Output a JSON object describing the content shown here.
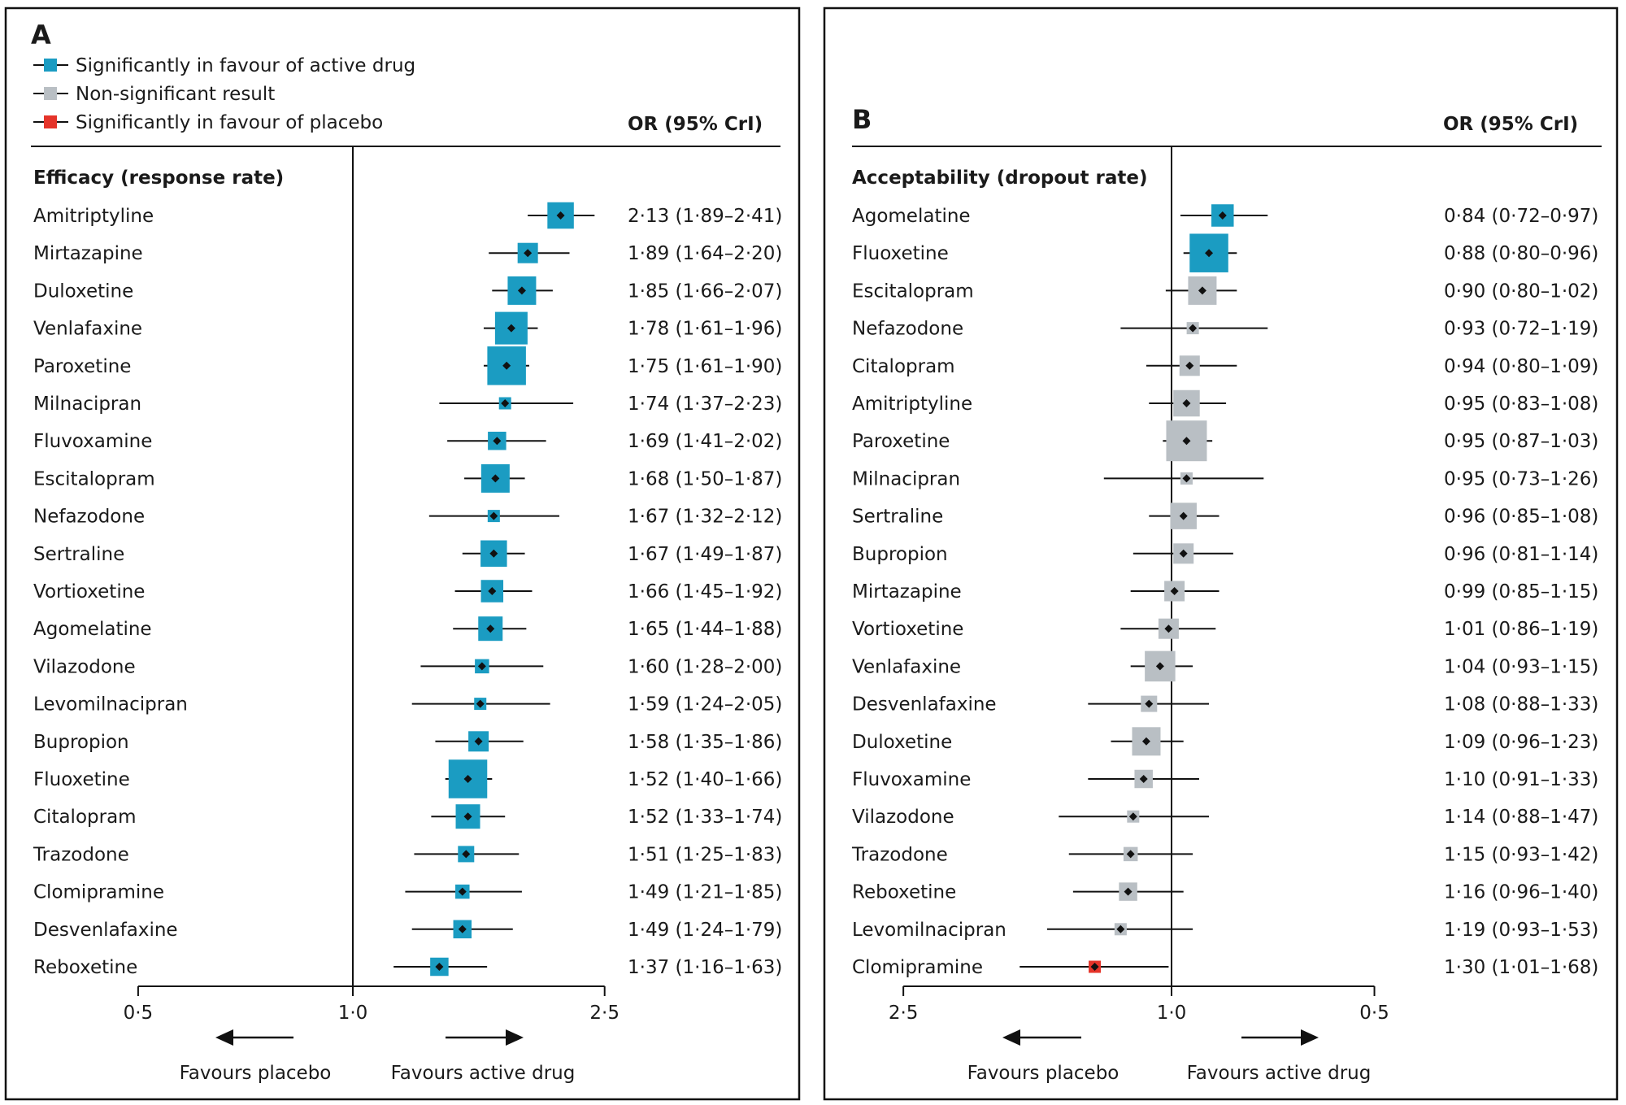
{
  "colors": {
    "sig_active": "#1b9cc2",
    "nonsig": "#b9bfc4",
    "sig_placebo": "#e5342a"
  },
  "chart_data": [
    {
      "type": "forest",
      "panel_label": "A",
      "legend": [
        {
          "label": "Significantly in favour of active drug",
          "status": "sig_active"
        },
        {
          "label": "Non-significant result",
          "status": "nonsig"
        },
        {
          "label": "Significantly in favour of placebo",
          "status": "sig_placebo"
        }
      ],
      "column_header": "OR (95% CrI)",
      "section_title": "Efficacy (response rate)",
      "x_scale": "log",
      "x_ticks": [
        "0·5",
        "1·0",
        "2·5"
      ],
      "x_tick_values": [
        0.5,
        1.0,
        2.5
      ],
      "reversed": false,
      "arrow_left_label": "Favours placebo",
      "arrow_right_label": "Favours active drug",
      "rows": [
        {
          "name": "Amitriptyline",
          "or": 2.13,
          "lo": 1.89,
          "hi": 2.41,
          "label": "2·13 (1·89–2·41)",
          "status": "sig_active",
          "weight": 0.65
        },
        {
          "name": "Mirtazapine",
          "or": 1.89,
          "lo": 1.64,
          "hi": 2.2,
          "label": "1·89 (1·64–2·20)",
          "status": "sig_active",
          "weight": 0.5
        },
        {
          "name": "Duloxetine",
          "or": 1.85,
          "lo": 1.66,
          "hi": 2.07,
          "label": "1·85 (1·66–2·07)",
          "status": "sig_active",
          "weight": 0.7
        },
        {
          "name": "Venlafaxine",
          "or": 1.78,
          "lo": 1.61,
          "hi": 1.96,
          "label": "1·78 (1·61–1·96)",
          "status": "sig_active",
          "weight": 0.8
        },
        {
          "name": "Paroxetine",
          "or": 1.75,
          "lo": 1.61,
          "hi": 1.9,
          "label": "1·75 (1·61–1·90)",
          "status": "sig_active",
          "weight": 0.95
        },
        {
          "name": "Milnacipran",
          "or": 1.74,
          "lo": 1.37,
          "hi": 2.23,
          "label": "1·74 (1·37–2·23)",
          "status": "sig_active",
          "weight": 0.3
        },
        {
          "name": "Fluvoxamine",
          "or": 1.69,
          "lo": 1.41,
          "hi": 2.02,
          "label": "1·69 (1·41–2·02)",
          "status": "sig_active",
          "weight": 0.45
        },
        {
          "name": "Escitalopram",
          "or": 1.68,
          "lo": 1.5,
          "hi": 1.87,
          "label": "1·68 (1·50–1·87)",
          "status": "sig_active",
          "weight": 0.7
        },
        {
          "name": "Nefazodone",
          "or": 1.67,
          "lo": 1.32,
          "hi": 2.12,
          "label": "1·67 (1·32–2·12)",
          "status": "sig_active",
          "weight": 0.3
        },
        {
          "name": "Sertraline",
          "or": 1.67,
          "lo": 1.49,
          "hi": 1.87,
          "label": "1·67 (1·49–1·87)",
          "status": "sig_active",
          "weight": 0.65
        },
        {
          "name": "Vortioxetine",
          "or": 1.66,
          "lo": 1.45,
          "hi": 1.92,
          "label": "1·66 (1·45–1·92)",
          "status": "sig_active",
          "weight": 0.55
        },
        {
          "name": "Agomelatine",
          "or": 1.65,
          "lo": 1.44,
          "hi": 1.88,
          "label": "1·65 (1·44–1·88)",
          "status": "sig_active",
          "weight": 0.6
        },
        {
          "name": "Vilazodone",
          "or": 1.6,
          "lo": 1.28,
          "hi": 2.0,
          "label": "1·60 (1·28–2·00)",
          "status": "sig_active",
          "weight": 0.35
        },
        {
          "name": "Levomilnacipran",
          "or": 1.59,
          "lo": 1.24,
          "hi": 2.05,
          "label": "1·59 (1·24–2·05)",
          "status": "sig_active",
          "weight": 0.3
        },
        {
          "name": "Bupropion",
          "or": 1.58,
          "lo": 1.35,
          "hi": 1.86,
          "label": "1·58 (1·35–1·86)",
          "status": "sig_active",
          "weight": 0.5
        },
        {
          "name": "Fluoxetine",
          "or": 1.52,
          "lo": 1.4,
          "hi": 1.66,
          "label": "1·52 (1·40–1·66)",
          "status": "sig_active",
          "weight": 0.95
        },
        {
          "name": "Citalopram",
          "or": 1.52,
          "lo": 1.33,
          "hi": 1.74,
          "label": "1·52 (1·33–1·74)",
          "status": "sig_active",
          "weight": 0.6
        },
        {
          "name": "Trazodone",
          "or": 1.51,
          "lo": 1.25,
          "hi": 1.83,
          "label": "1·51 (1·25–1·83)",
          "status": "sig_active",
          "weight": 0.4
        },
        {
          "name": "Clomipramine",
          "or": 1.49,
          "lo": 1.21,
          "hi": 1.85,
          "label": "1·49 (1·21–1·85)",
          "status": "sig_active",
          "weight": 0.35
        },
        {
          "name": "Desvenlafaxine",
          "or": 1.49,
          "lo": 1.24,
          "hi": 1.79,
          "label": "1·49 (1·24–1·79)",
          "status": "sig_active",
          "weight": 0.45
        },
        {
          "name": "Reboxetine",
          "or": 1.37,
          "lo": 1.16,
          "hi": 1.63,
          "label": "1·37 (1·16–1·63)",
          "status": "sig_active",
          "weight": 0.45
        }
      ]
    },
    {
      "type": "forest",
      "panel_label": "B",
      "column_header": "OR (95% CrI)",
      "section_title": "Acceptability (dropout rate)",
      "x_scale": "log",
      "x_ticks": [
        "2·5",
        "1·0",
        "0·5"
      ],
      "x_tick_values": [
        2.5,
        1.0,
        0.5
      ],
      "reversed": true,
      "arrow_left_label": "Favours placebo",
      "arrow_right_label": "Favours active drug",
      "rows": [
        {
          "name": "Agomelatine",
          "or": 0.84,
          "lo": 0.72,
          "hi": 0.97,
          "label": "0·84 (0·72–0·97)",
          "status": "sig_active",
          "weight": 0.55
        },
        {
          "name": "Fluoxetine",
          "or": 0.88,
          "lo": 0.8,
          "hi": 0.96,
          "label": "0·88 (0·80–0·96)",
          "status": "sig_active",
          "weight": 0.95
        },
        {
          "name": "Escitalopram",
          "or": 0.9,
          "lo": 0.8,
          "hi": 1.02,
          "label": "0·90 (0·80–1·02)",
          "status": "nonsig",
          "weight": 0.7
        },
        {
          "name": "Nefazodone",
          "or": 0.93,
          "lo": 0.72,
          "hi": 1.19,
          "label": "0·93 (0·72–1·19)",
          "status": "nonsig",
          "weight": 0.3
        },
        {
          "name": "Citalopram",
          "or": 0.94,
          "lo": 0.8,
          "hi": 1.09,
          "label": "0·94 (0·80–1·09)",
          "status": "nonsig",
          "weight": 0.5
        },
        {
          "name": "Amitriptyline",
          "or": 0.95,
          "lo": 0.83,
          "hi": 1.08,
          "label": "0·95 (0·83–1·08)",
          "status": "nonsig",
          "weight": 0.65
        },
        {
          "name": "Paroxetine",
          "or": 0.95,
          "lo": 0.87,
          "hi": 1.03,
          "label": "0·95 (0·87–1·03)",
          "status": "nonsig",
          "weight": 1.0
        },
        {
          "name": "Milnacipran",
          "or": 0.95,
          "lo": 0.73,
          "hi": 1.26,
          "label": "0·95 (0·73–1·26)",
          "status": "nonsig",
          "weight": 0.3
        },
        {
          "name": "Sertraline",
          "or": 0.96,
          "lo": 0.85,
          "hi": 1.08,
          "label": "0·96 (0·85–1·08)",
          "status": "nonsig",
          "weight": 0.65
        },
        {
          "name": "Bupropion",
          "or": 0.96,
          "lo": 0.81,
          "hi": 1.14,
          "label": "0·96 (0·81–1·14)",
          "status": "nonsig",
          "weight": 0.5
        },
        {
          "name": "Mirtazapine",
          "or": 0.99,
          "lo": 0.85,
          "hi": 1.15,
          "label": "0·99 (0·85–1·15)",
          "status": "nonsig",
          "weight": 0.5
        },
        {
          "name": "Vortioxetine",
          "or": 1.01,
          "lo": 0.86,
          "hi": 1.19,
          "label": "1·01 (0·86–1·19)",
          "status": "nonsig",
          "weight": 0.5
        },
        {
          "name": "Venlafaxine",
          "or": 1.04,
          "lo": 0.93,
          "hi": 1.15,
          "label": "1·04 (0·93–1·15)",
          "status": "nonsig",
          "weight": 0.75
        },
        {
          "name": "Desvenlafaxine",
          "or": 1.08,
          "lo": 0.88,
          "hi": 1.33,
          "label": "1·08 (0·88–1·33)",
          "status": "nonsig",
          "weight": 0.4
        },
        {
          "name": "Duloxetine",
          "or": 1.09,
          "lo": 0.96,
          "hi": 1.23,
          "label": "1·09 (0·96–1·23)",
          "status": "nonsig",
          "weight": 0.7
        },
        {
          "name": "Fluvoxamine",
          "or": 1.1,
          "lo": 0.91,
          "hi": 1.33,
          "label": "1·10 (0·91–1·33)",
          "status": "nonsig",
          "weight": 0.45
        },
        {
          "name": "Vilazodone",
          "or": 1.14,
          "lo": 0.88,
          "hi": 1.47,
          "label": "1·14 (0·88–1·47)",
          "status": "nonsig",
          "weight": 0.3
        },
        {
          "name": "Trazodone",
          "or": 1.15,
          "lo": 0.93,
          "hi": 1.42,
          "label": "1·15 (0·93–1·42)",
          "status": "nonsig",
          "weight": 0.35
        },
        {
          "name": "Reboxetine",
          "or": 1.16,
          "lo": 0.96,
          "hi": 1.4,
          "label": "1·16 (0·96–1·40)",
          "status": "nonsig",
          "weight": 0.45
        },
        {
          "name": "Levomilnacipran",
          "or": 1.19,
          "lo": 0.93,
          "hi": 1.53,
          "label": "1·19 (0·93–1·53)",
          "status": "nonsig",
          "weight": 0.3
        },
        {
          "name": "Clomipramine",
          "or": 1.3,
          "lo": 1.01,
          "hi": 1.68,
          "label": "1·30 (1·01–1·68)",
          "status": "sig_placebo",
          "weight": 0.3
        }
      ]
    }
  ]
}
